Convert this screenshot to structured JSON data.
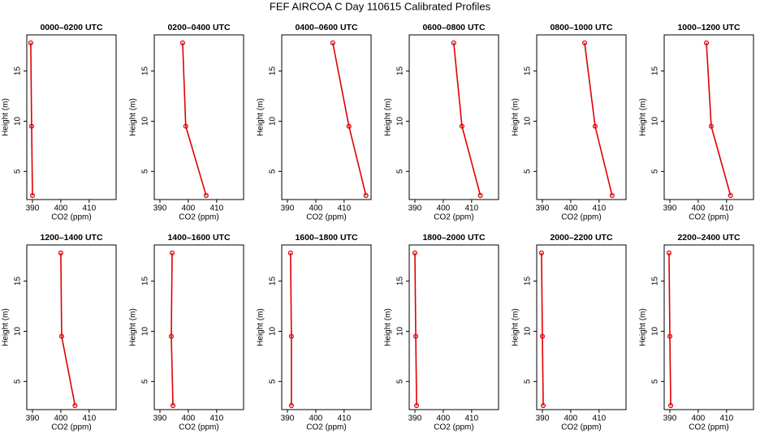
{
  "title": "FEF AIRCOA C  Day 110615  Calibrated Profiles",
  "chart_data": [
    {
      "type": "line",
      "title": "0000–0200 UTC",
      "xlabel": "CO2 (ppm)",
      "ylabel": "Height (m)",
      "color": "#e00000",
      "x": [
        389.4,
        389.7,
        390.0
      ],
      "y": [
        17.8,
        9.5,
        2.6
      ],
      "xlim": [
        388,
        419.5
      ],
      "ylim": [
        2.2,
        18.6
      ],
      "xticks": [
        390,
        400,
        410
      ],
      "yticks": [
        5,
        10,
        15
      ]
    },
    {
      "type": "line",
      "title": "0200–0400 UTC",
      "xlabel": "CO2 (ppm)",
      "ylabel": "Height (m)",
      "color": "#e00000",
      "x": [
        398.0,
        399.1,
        406.3
      ],
      "y": [
        17.8,
        9.5,
        2.6
      ],
      "xlim": [
        388,
        419.5
      ],
      "ylim": [
        2.2,
        18.6
      ],
      "xticks": [
        390,
        400,
        410
      ],
      "yticks": [
        5,
        10,
        15
      ]
    },
    {
      "type": "line",
      "title": "0400–0600 UTC",
      "xlabel": "CO2 (ppm)",
      "ylabel": "Height (m)",
      "color": "#e00000",
      "x": [
        406.0,
        411.7,
        417.7
      ],
      "y": [
        17.8,
        9.5,
        2.6
      ],
      "xlim": [
        388,
        419.5
      ],
      "ylim": [
        2.2,
        18.6
      ],
      "xticks": [
        390,
        400,
        410
      ],
      "yticks": [
        5,
        10,
        15
      ]
    },
    {
      "type": "line",
      "title": "0600–0800 UTC",
      "xlabel": "CO2 (ppm)",
      "ylabel": "Height (m)",
      "color": "#e00000",
      "x": [
        403.7,
        406.6,
        413.1
      ],
      "y": [
        17.8,
        9.5,
        2.6
      ],
      "xlim": [
        388,
        419.5
      ],
      "ylim": [
        2.2,
        18.6
      ],
      "xticks": [
        390,
        400,
        410
      ],
      "yticks": [
        5,
        10,
        15
      ]
    },
    {
      "type": "line",
      "title": "0800–1000 UTC",
      "xlabel": "CO2 (ppm)",
      "ylabel": "Height (m)",
      "color": "#e00000",
      "x": [
        404.9,
        408.6,
        414.6
      ],
      "y": [
        17.8,
        9.5,
        2.6
      ],
      "xlim": [
        388,
        419.5
      ],
      "ylim": [
        2.2,
        18.6
      ],
      "xticks": [
        390,
        400,
        410
      ],
      "yticks": [
        5,
        10,
        15
      ]
    },
    {
      "type": "line",
      "title": "1000–1200 UTC",
      "xlabel": "CO2 (ppm)",
      "ylabel": "Height (m)",
      "color": "#e00000",
      "x": [
        402.9,
        404.6,
        411.4
      ],
      "y": [
        17.8,
        9.5,
        2.6
      ],
      "xlim": [
        388,
        419.5
      ],
      "ylim": [
        2.2,
        18.6
      ],
      "xticks": [
        390,
        400,
        410
      ],
      "yticks": [
        5,
        10,
        15
      ]
    },
    {
      "type": "line",
      "title": "1200–1400 UTC",
      "xlabel": "CO2 (ppm)",
      "ylabel": "Height (m)",
      "color": "#e00000",
      "x": [
        400.0,
        400.3,
        405.0
      ],
      "y": [
        17.8,
        9.5,
        2.6
      ],
      "xlim": [
        388,
        419.5
      ],
      "ylim": [
        2.2,
        18.6
      ],
      "xticks": [
        390,
        400,
        410
      ],
      "yticks": [
        5,
        10,
        15
      ]
    },
    {
      "type": "line",
      "title": "1400–1600 UTC",
      "xlabel": "CO2 (ppm)",
      "ylabel": "Height (m)",
      "color": "#e00000",
      "x": [
        394.3,
        394.0,
        394.6
      ],
      "y": [
        17.8,
        9.5,
        2.6
      ],
      "xlim": [
        388,
        419.5
      ],
      "ylim": [
        2.2,
        18.6
      ],
      "xticks": [
        390,
        400,
        410
      ],
      "yticks": [
        5,
        10,
        15
      ]
    },
    {
      "type": "line",
      "title": "1600–1800 UTC",
      "xlabel": "CO2 (ppm)",
      "ylabel": "Height (m)",
      "color": "#e00000",
      "x": [
        391.1,
        391.4,
        391.4
      ],
      "y": [
        17.8,
        9.5,
        2.6
      ],
      "xlim": [
        388,
        419.5
      ],
      "ylim": [
        2.2,
        18.6
      ],
      "xticks": [
        390,
        400,
        410
      ],
      "yticks": [
        5,
        10,
        15
      ]
    },
    {
      "type": "line",
      "title": "1800–2000 UTC",
      "xlabel": "CO2 (ppm)",
      "ylabel": "Height (m)",
      "color": "#e00000",
      "x": [
        390.0,
        390.3,
        390.6
      ],
      "y": [
        17.8,
        9.5,
        2.6
      ],
      "xlim": [
        388,
        419.5
      ],
      "ylim": [
        2.2,
        18.6
      ],
      "xticks": [
        390,
        400,
        410
      ],
      "yticks": [
        5,
        10,
        15
      ]
    },
    {
      "type": "line",
      "title": "2000–2200 UTC",
      "xlabel": "CO2 (ppm)",
      "ylabel": "Height (m)",
      "color": "#e00000",
      "x": [
        389.7,
        390.0,
        390.3
      ],
      "y": [
        17.8,
        9.5,
        2.6
      ],
      "xlim": [
        388,
        419.5
      ],
      "ylim": [
        2.2,
        18.6
      ],
      "xticks": [
        390,
        400,
        410
      ],
      "yticks": [
        5,
        10,
        15
      ]
    },
    {
      "type": "line",
      "title": "2200–2400 UTC",
      "xlabel": "CO2 (ppm)",
      "ylabel": "Height (m)",
      "color": "#e00000",
      "x": [
        389.7,
        390.0,
        390.3
      ],
      "y": [
        17.8,
        9.5,
        2.6
      ],
      "xlim": [
        388,
        419.5
      ],
      "ylim": [
        2.2,
        18.6
      ],
      "xticks": [
        390,
        400,
        410
      ],
      "yticks": [
        5,
        10,
        15
      ]
    }
  ]
}
